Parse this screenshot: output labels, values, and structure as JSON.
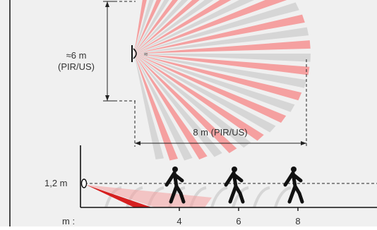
{
  "labels": {
    "height_value": "≈6 m",
    "height_tech": "(PIR/US)",
    "range": "8 m (PIR/US)",
    "mount_height": "1,2 m",
    "approx_symbol": "≈"
  },
  "axis": {
    "unit_label": "m :",
    "ticks": [
      "4",
      "6",
      "8"
    ]
  },
  "colors": {
    "background": "#f0f0f0",
    "zone_red": "#f5a0a0",
    "zone_grey": "#d6d6d6",
    "side_red": "#d62020",
    "ink": "#222222"
  },
  "icons": [
    "detector-icon",
    "person-walking-icon"
  ]
}
